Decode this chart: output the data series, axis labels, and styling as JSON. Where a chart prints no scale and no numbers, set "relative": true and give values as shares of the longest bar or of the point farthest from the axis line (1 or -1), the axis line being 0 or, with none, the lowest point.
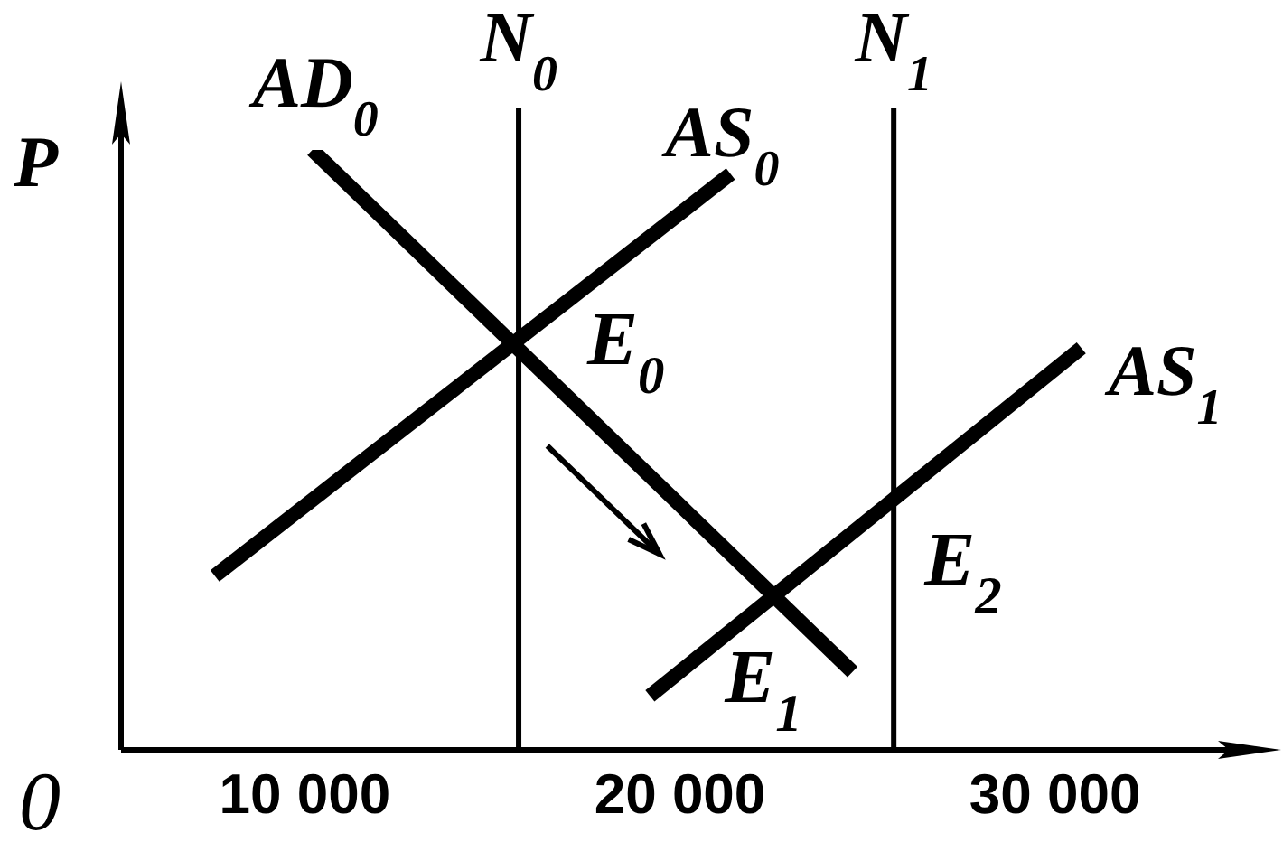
{
  "chart_data": {
    "type": "line",
    "relative": true,
    "ylabel": "P",
    "xlim": [
      5100,
      35500
    ],
    "xticks": [
      {
        "value": 10000,
        "label": "10 000"
      },
      {
        "value": 20000,
        "label": "20 000"
      },
      {
        "value": 30000,
        "label": "30 000"
      }
    ],
    "tick_labels": "x",
    "series": [
      {
        "name": "AD$_{0}$",
        "color": "#000000",
        "x": [
          10200,
          24600
        ],
        "values": [
          1,
          0.13
        ]
      },
      {
        "name": "AS$_{0}$",
        "color": "#000000",
        "x": [
          7600,
          21350
        ],
        "values": [
          0.29,
          0.96
        ]
      },
      {
        "name": "AS$_{1}$",
        "color": "#000000",
        "x": [
          19200,
          30700
        ],
        "values": [
          0.09,
          0.67
        ]
      }
    ],
    "ref_lines": [
      {
        "axis": "x",
        "value": 15700,
        "label": "N$_{0}$",
        "color": "#000000"
      },
      {
        "axis": "x",
        "value": 25700,
        "label": "N$_{1}$",
        "color": "#000000"
      }
    ],
    "annotations": [
      {
        "text": "E$_{0}$",
        "x": 15700,
        "y": 0.67
      },
      {
        "text": "E$_{1}$",
        "x": 22500,
        "y": 0.26
      },
      {
        "text": "E$_{2}$",
        "x": 25700,
        "y": 0.42
      },
      "0"
    ]
  }
}
